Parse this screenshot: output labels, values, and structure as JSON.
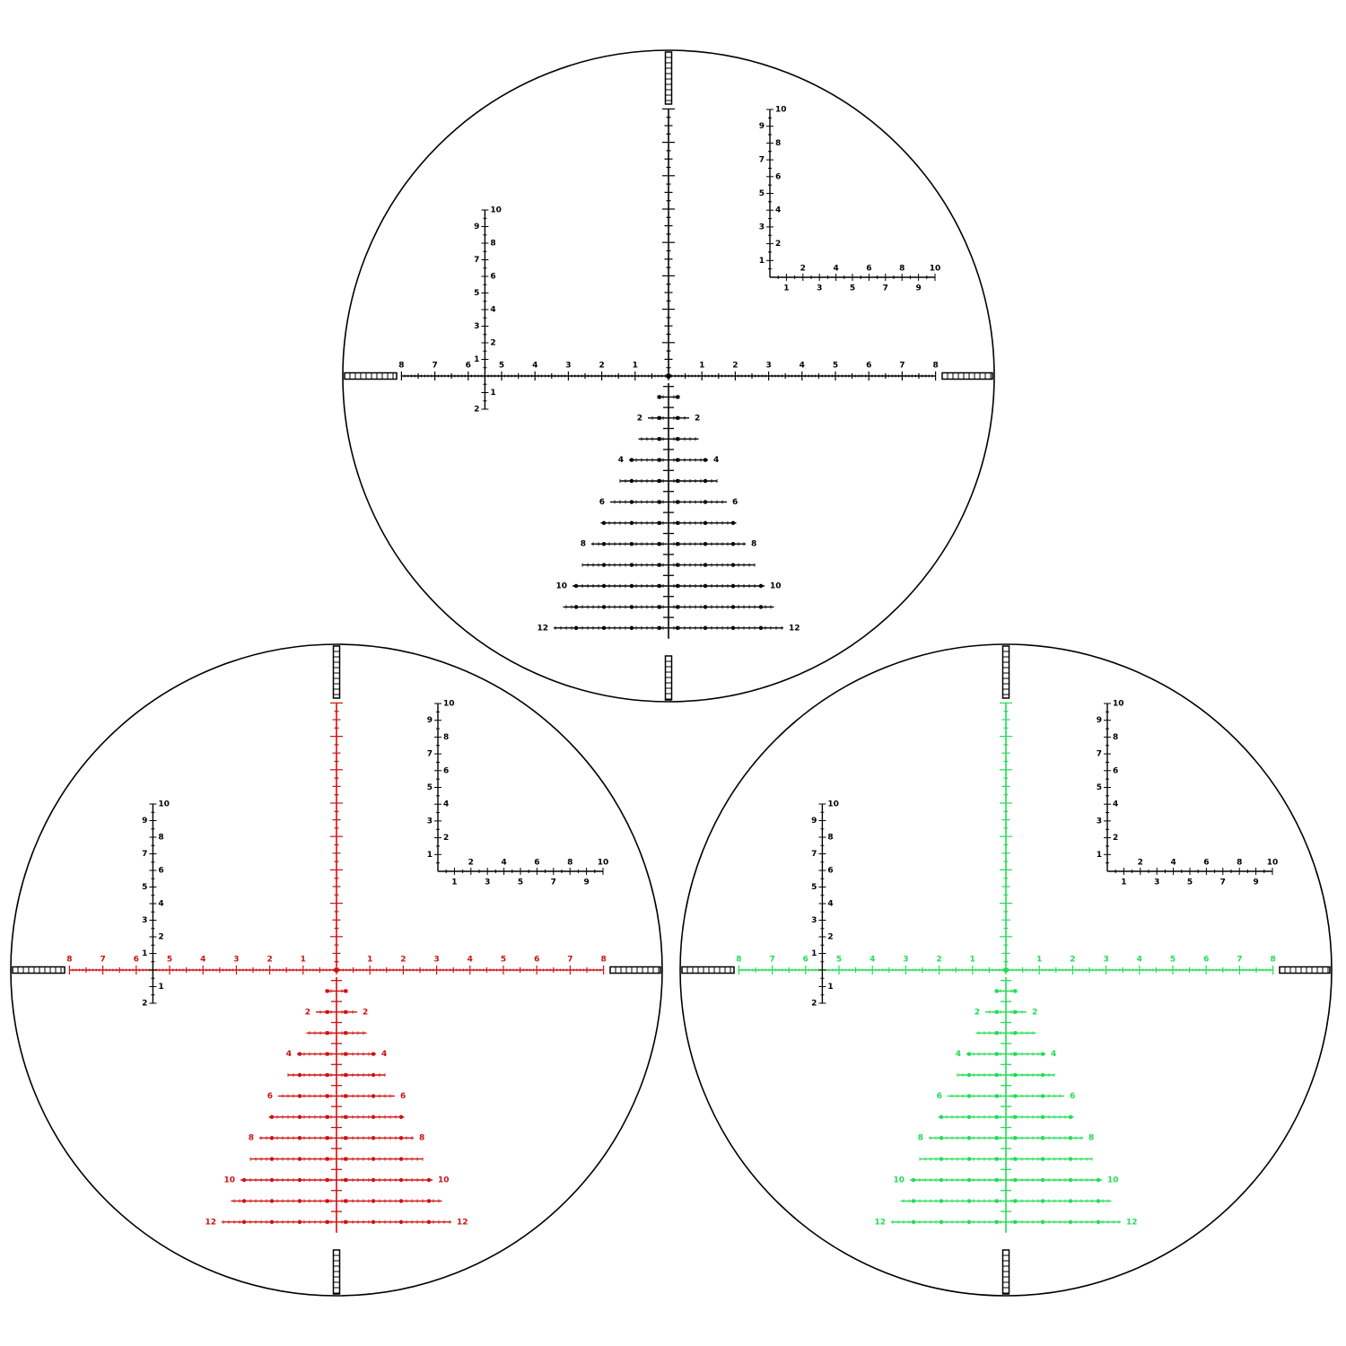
{
  "reticle": {
    "horizontal_labels": [
      1,
      2,
      3,
      4,
      5,
      6,
      7,
      8
    ],
    "vertical_scale": {
      "up": [
        1,
        2,
        3,
        4,
        5,
        6,
        7,
        8,
        9,
        10
      ],
      "down": [
        1,
        2
      ]
    },
    "corner_scale": {
      "vertical": [
        1,
        2,
        3,
        4,
        5,
        6,
        7,
        8,
        9,
        10
      ],
      "horizontal": [
        1,
        2,
        3,
        4,
        5,
        6,
        7,
        8,
        9,
        10
      ]
    },
    "tree_labels": [
      2,
      4,
      6,
      8,
      10,
      12
    ],
    "scale_color": "#000000"
  },
  "views": [
    {
      "color": "#000000"
    },
    {
      "color": "#d01010"
    },
    {
      "color": "#22dd55"
    }
  ]
}
